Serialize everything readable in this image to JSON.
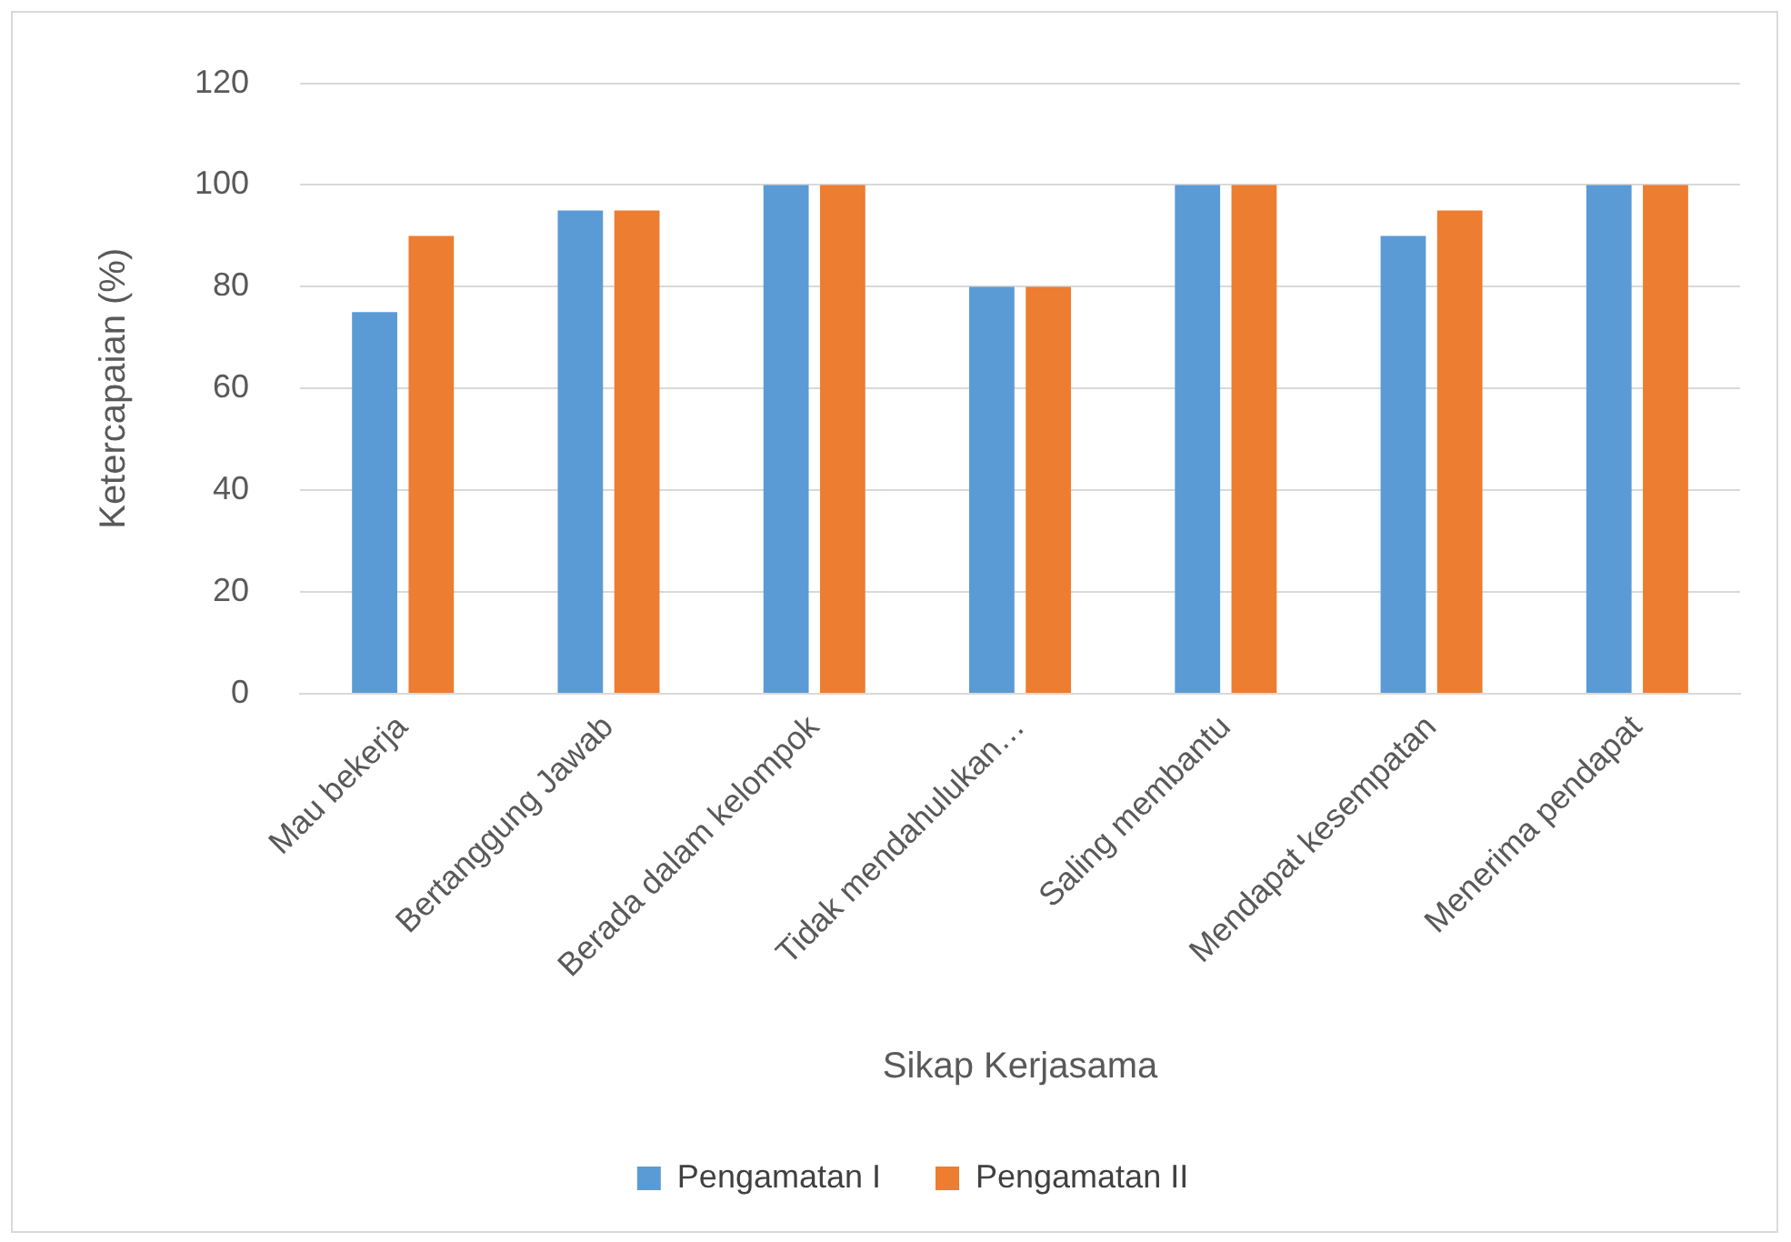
{
  "chart_data": {
    "type": "bar",
    "xlabel": "Sikap Kerjasama",
    "ylabel": "Ketercapaian (%)",
    "categories": [
      "Mau bekerja",
      "Bertanggung Jawab",
      "Berada dalam kelompok",
      "Tidak mendahulukan…",
      "Saling membantu",
      "Mendapat kesempatan",
      "Menerima pendapat"
    ],
    "series": [
      {
        "name": "Pengamatan I",
        "color": "#5b9bd5",
        "values": [
          75,
          95,
          100,
          80,
          100,
          90,
          100
        ]
      },
      {
        "name": "Pengamatan II",
        "color": "#ed7d31",
        "values": [
          90,
          95,
          100,
          80,
          100,
          95,
          100
        ]
      }
    ],
    "ylim": [
      0,
      120
    ],
    "yticks": [
      0,
      20,
      40,
      60,
      80,
      100,
      120
    ],
    "grid": "y",
    "legend": "bottom"
  }
}
